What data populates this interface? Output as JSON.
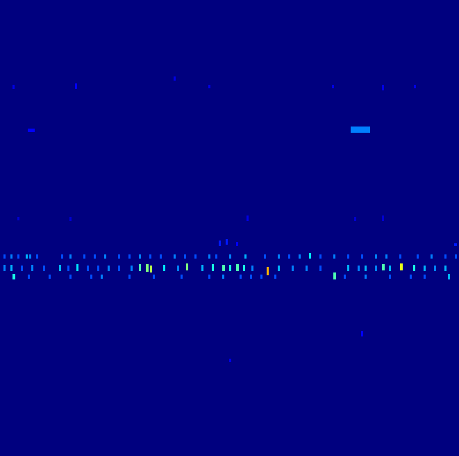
{
  "chart_data": {
    "type": "heatmap",
    "xlim": [
      0,
      661
    ],
    "ylim": [
      656,
      0
    ],
    "zlim": [
      0,
      1
    ],
    "tick_labels": false,
    "cells": [
      [
        5,
        366,
        3,
        6,
        0.2
      ],
      [
        15,
        366,
        3,
        6,
        0.25
      ],
      [
        25,
        366,
        3,
        6,
        0.2
      ],
      [
        37,
        366,
        3,
        6,
        0.3
      ],
      [
        42,
        366,
        3,
        6,
        0.25
      ],
      [
        52,
        366,
        3,
        6,
        0.2
      ],
      [
        88,
        366,
        3,
        6,
        0.2
      ],
      [
        100,
        366,
        3,
        6,
        0.25
      ],
      [
        120,
        366,
        3,
        6,
        0.2
      ],
      [
        135,
        366,
        3,
        6,
        0.2
      ],
      [
        150,
        366,
        3,
        6,
        0.25
      ],
      [
        170,
        366,
        3,
        6,
        0.2
      ],
      [
        185,
        366,
        3,
        6,
        0.2
      ],
      [
        200,
        366,
        3,
        6,
        0.25
      ],
      [
        215,
        366,
        3,
        6,
        0.2
      ],
      [
        230,
        366,
        3,
        6,
        0.2
      ],
      [
        250,
        366,
        3,
        6,
        0.25
      ],
      [
        265,
        366,
        3,
        6,
        0.2
      ],
      [
        280,
        366,
        3,
        6,
        0.2
      ],
      [
        300,
        366,
        3,
        6,
        0.25
      ],
      [
        310,
        366,
        3,
        6,
        0.2
      ],
      [
        330,
        366,
        3,
        6,
        0.25
      ],
      [
        352,
        366,
        3,
        6,
        0.3
      ],
      [
        380,
        366,
        3,
        6,
        0.2
      ],
      [
        400,
        366,
        3,
        6,
        0.25
      ],
      [
        415,
        366,
        3,
        6,
        0.2
      ],
      [
        430,
        366,
        3,
        6,
        0.25
      ],
      [
        445,
        364,
        3,
        8,
        0.35
      ],
      [
        460,
        366,
        3,
        6,
        0.2
      ],
      [
        480,
        366,
        3,
        6,
        0.25
      ],
      [
        500,
        366,
        3,
        6,
        0.2
      ],
      [
        520,
        366,
        3,
        6,
        0.2
      ],
      [
        540,
        366,
        3,
        6,
        0.25
      ],
      [
        555,
        366,
        3,
        6,
        0.25
      ],
      [
        575,
        366,
        3,
        6,
        0.2
      ],
      [
        600,
        366,
        3,
        6,
        0.2
      ],
      [
        620,
        366,
        3,
        6,
        0.25
      ],
      [
        640,
        366,
        3,
        6,
        0.2
      ],
      [
        655,
        366,
        3,
        6,
        0.2
      ],
      [
        5,
        381,
        3,
        9,
        0.25
      ],
      [
        15,
        381,
        3,
        9,
        0.3
      ],
      [
        30,
        382,
        3,
        8,
        0.2
      ],
      [
        45,
        381,
        3,
        9,
        0.25
      ],
      [
        62,
        382,
        3,
        8,
        0.2
      ],
      [
        85,
        381,
        3,
        9,
        0.3
      ],
      [
        97,
        382,
        3,
        8,
        0.2
      ],
      [
        110,
        380,
        3,
        10,
        0.35
      ],
      [
        125,
        382,
        3,
        8,
        0.2
      ],
      [
        140,
        382,
        3,
        8,
        0.2
      ],
      [
        155,
        382,
        3,
        8,
        0.25
      ],
      [
        170,
        382,
        3,
        8,
        0.2
      ],
      [
        188,
        382,
        3,
        8,
        0.25
      ],
      [
        200,
        380,
        3,
        10,
        0.45
      ],
      [
        210,
        380,
        4,
        11,
        0.5
      ],
      [
        216,
        382,
        3,
        10,
        0.55
      ],
      [
        235,
        381,
        3,
        9,
        0.35
      ],
      [
        255,
        382,
        3,
        8,
        0.25
      ],
      [
        268,
        379,
        3,
        10,
        0.5
      ],
      [
        290,
        381,
        3,
        9,
        0.3
      ],
      [
        305,
        380,
        3,
        10,
        0.4
      ],
      [
        320,
        381,
        4,
        9,
        0.45
      ],
      [
        330,
        381,
        3,
        9,
        0.4
      ],
      [
        340,
        380,
        4,
        10,
        0.45
      ],
      [
        350,
        381,
        3,
        9,
        0.4
      ],
      [
        362,
        382,
        3,
        8,
        0.25
      ],
      [
        384,
        384,
        3,
        12,
        0.7
      ],
      [
        400,
        382,
        3,
        8,
        0.3
      ],
      [
        420,
        382,
        3,
        8,
        0.25
      ],
      [
        440,
        382,
        3,
        8,
        0.25
      ],
      [
        460,
        382,
        3,
        8,
        0.2
      ],
      [
        480,
        392,
        4,
        10,
        0.45
      ],
      [
        500,
        381,
        3,
        9,
        0.3
      ],
      [
        515,
        382,
        3,
        8,
        0.25
      ],
      [
        525,
        382,
        3,
        8,
        0.3
      ],
      [
        540,
        382,
        3,
        8,
        0.25
      ],
      [
        550,
        380,
        4,
        9,
        0.45
      ],
      [
        560,
        382,
        3,
        8,
        0.3
      ],
      [
        576,
        379,
        4,
        10,
        0.6
      ],
      [
        595,
        381,
        3,
        9,
        0.4
      ],
      [
        610,
        382,
        3,
        8,
        0.3
      ],
      [
        625,
        382,
        3,
        8,
        0.25
      ],
      [
        640,
        382,
        3,
        8,
        0.3
      ],
      [
        18,
        394,
        4,
        8,
        0.4
      ],
      [
        40,
        395,
        3,
        6,
        0.2
      ],
      [
        70,
        395,
        3,
        6,
        0.2
      ],
      [
        100,
        395,
        3,
        6,
        0.2
      ],
      [
        130,
        395,
        3,
        6,
        0.2
      ],
      [
        145,
        395,
        3,
        6,
        0.25
      ],
      [
        185,
        395,
        3,
        6,
        0.2
      ],
      [
        220,
        395,
        3,
        6,
        0.2
      ],
      [
        260,
        395,
        3,
        6,
        0.2
      ],
      [
        300,
        395,
        3,
        6,
        0.2
      ],
      [
        320,
        395,
        3,
        6,
        0.25
      ],
      [
        345,
        395,
        3,
        6,
        0.2
      ],
      [
        360,
        395,
        3,
        6,
        0.2
      ],
      [
        375,
        395,
        3,
        6,
        0.2
      ],
      [
        395,
        395,
        3,
        6,
        0.2
      ],
      [
        495,
        395,
        3,
        6,
        0.2
      ],
      [
        525,
        395,
        3,
        6,
        0.25
      ],
      [
        560,
        395,
        3,
        6,
        0.2
      ],
      [
        590,
        395,
        3,
        6,
        0.2
      ],
      [
        610,
        395,
        3,
        6,
        0.2
      ],
      [
        645,
        394,
        3,
        8,
        0.3
      ],
      [
        505,
        182,
        28,
        9,
        0.25
      ],
      [
        40,
        185,
        10,
        5,
        0.12
      ],
      [
        108,
        120,
        3,
        8,
        0.12
      ],
      [
        18,
        122,
        3,
        6,
        0.1
      ],
      [
        250,
        110,
        3,
        6,
        0.1
      ],
      [
        300,
        122,
        3,
        5,
        0.1
      ],
      [
        550,
        122,
        3,
        8,
        0.1
      ],
      [
        596,
        122,
        3,
        5,
        0.1
      ],
      [
        478,
        122,
        3,
        5,
        0.1
      ],
      [
        315,
        346,
        3,
        8,
        0.15
      ],
      [
        325,
        344,
        3,
        8,
        0.15
      ],
      [
        340,
        348,
        3,
        6,
        0.12
      ],
      [
        520,
        476,
        3,
        8,
        0.12
      ],
      [
        330,
        516,
        3,
        5,
        0.1
      ],
      [
        355,
        310,
        3,
        8,
        0.1
      ],
      [
        25,
        312,
        3,
        5,
        0.08
      ],
      [
        100,
        312,
        3,
        6,
        0.08
      ],
      [
        510,
        312,
        3,
        6,
        0.08
      ],
      [
        550,
        310,
        3,
        8,
        0.08
      ],
      [
        654,
        350,
        4,
        4,
        0.15
      ]
    ]
  }
}
